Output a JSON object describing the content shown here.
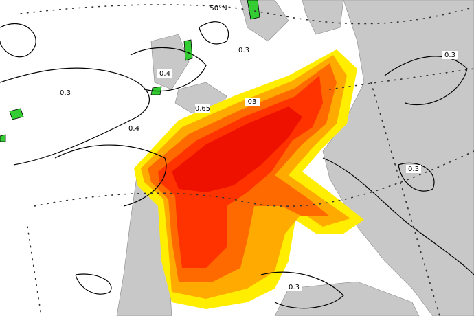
{
  "map": {
    "latitude_label": "50°N",
    "contour_labels": [
      "0.3",
      "0.3",
      "0.4",
      "0.3",
      "0.65",
      "03",
      "0.4",
      "0.3",
      "0.3"
    ]
  }
}
